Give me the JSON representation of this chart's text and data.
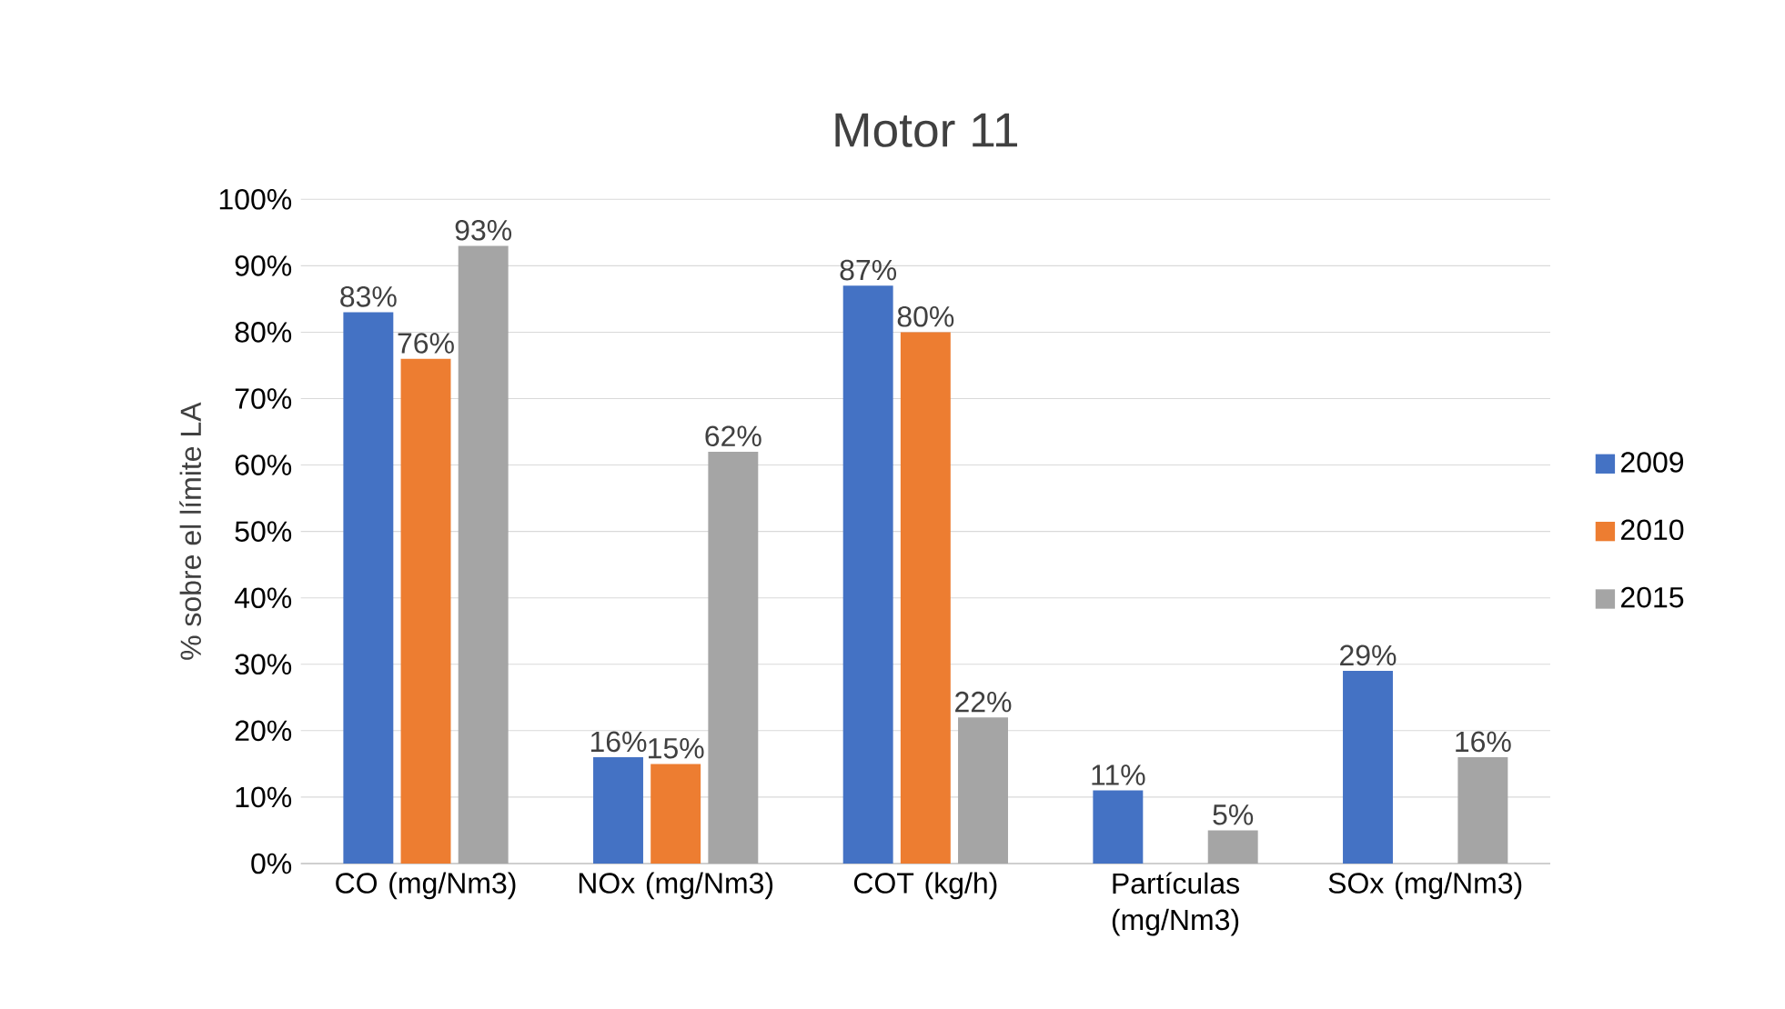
{
  "chart_data": {
    "type": "bar",
    "title": "Motor 11",
    "ylabel": "% sobre el límite LA",
    "categories": [
      "CO (mg/Nm3)",
      "NOx (mg/Nm3)",
      "COT (kg/h)",
      "Partículas (mg/Nm3)",
      "SOx (mg/Nm3)"
    ],
    "series": [
      {
        "name": "2009",
        "color": "#4472c4",
        "values": [
          83,
          16,
          87,
          11,
          29
        ],
        "value_labels": [
          "83%",
          "16%",
          "87%",
          "11%",
          "29%"
        ]
      },
      {
        "name": "2010",
        "color": "#ed7d31",
        "values": [
          76,
          15,
          80,
          null,
          null
        ],
        "value_labels": [
          "76%",
          "15%",
          "80%",
          null,
          null
        ]
      },
      {
        "name": "2015",
        "color": "#a5a5a5",
        "values": [
          93,
          62,
          22,
          5,
          16
        ],
        "value_labels": [
          "93%",
          "62%",
          "22%",
          "5%",
          "16%"
        ]
      }
    ],
    "ylim": [
      0,
      100
    ],
    "yticks": [
      {
        "value": 0,
        "label": "0%"
      },
      {
        "value": 10,
        "label": "10%"
      },
      {
        "value": 20,
        "label": "20%"
      },
      {
        "value": 30,
        "label": "30%"
      },
      {
        "value": 40,
        "label": "40%"
      },
      {
        "value": 50,
        "label": "50%"
      },
      {
        "value": 60,
        "label": "60%"
      },
      {
        "value": 70,
        "label": "70%"
      },
      {
        "value": 80,
        "label": "80%"
      },
      {
        "value": 90,
        "label": "90%"
      },
      {
        "value": 100,
        "label": "100%"
      }
    ],
    "grid": "y",
    "legend": "right"
  }
}
